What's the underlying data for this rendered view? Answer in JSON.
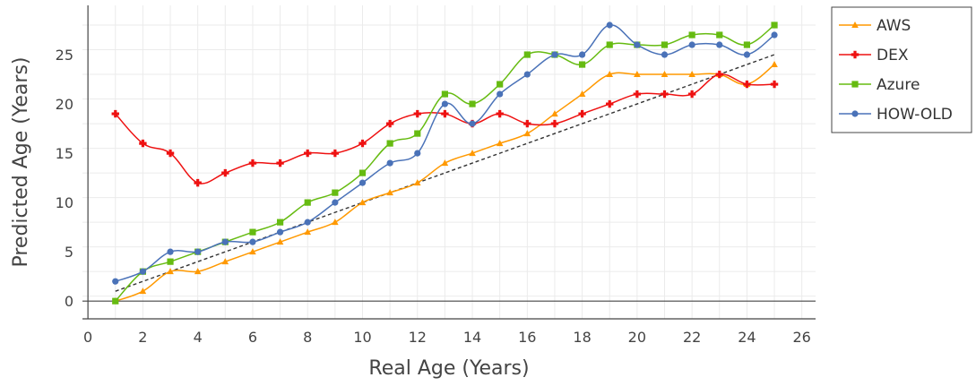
{
  "chart_data": {
    "type": "line",
    "xlabel": "Real Age (Years)",
    "ylabel": "Predicted Age (Years)",
    "xlim": [
      -0.2,
      26.5
    ],
    "ylim": [
      -1.8,
      30
    ],
    "x_ticks": [
      0,
      2,
      4,
      6,
      8,
      10,
      12,
      14,
      16,
      18,
      20,
      22,
      24,
      26
    ],
    "y_ticks": [
      0,
      5,
      10,
      15,
      20,
      25
    ],
    "grid": true,
    "legend_position": "top-right",
    "x": [
      1,
      2,
      3,
      4,
      5,
      6,
      7,
      8,
      9,
      10,
      11,
      12,
      13,
      14,
      15,
      16,
      17,
      18,
      19,
      20,
      21,
      22,
      23,
      24,
      25
    ],
    "series": [
      {
        "name": "AWS",
        "color": "#ff9900",
        "marker": "triangle",
        "values": [
          0,
          1,
          3,
          3,
          4,
          5,
          6,
          7,
          8,
          10,
          11,
          12,
          14,
          15,
          16,
          17,
          19,
          21,
          23,
          23,
          23,
          23,
          23,
          22,
          24
        ]
      },
      {
        "name": "DEX",
        "color": "#ee1111",
        "marker": "cross",
        "values": [
          19,
          16,
          15,
          12,
          13,
          14,
          14,
          15,
          15,
          16,
          18,
          19,
          19,
          18,
          19,
          18,
          18,
          19,
          20,
          21,
          21,
          21,
          23,
          22,
          22
        ]
      },
      {
        "name": "Azure",
        "color": "#66bb11",
        "marker": "square",
        "values": [
          0,
          3,
          4,
          5,
          6,
          7,
          8,
          10,
          11,
          13,
          16,
          17,
          21,
          20,
          22,
          25,
          25,
          24,
          26,
          26,
          26,
          27,
          27,
          26,
          28
        ]
      },
      {
        "name": "HOW-OLD",
        "color": "#4a72b8",
        "marker": "circle",
        "values": [
          2,
          3,
          5,
          5,
          6,
          6,
          7,
          8,
          10,
          12,
          14,
          15,
          20,
          18,
          21,
          23,
          25,
          25,
          28,
          26,
          25,
          26,
          26,
          25,
          27
        ]
      }
    ],
    "reference_line": {
      "style": "dashed",
      "color": "#333333",
      "x": [
        1,
        25
      ],
      "y": [
        1,
        25
      ]
    }
  }
}
